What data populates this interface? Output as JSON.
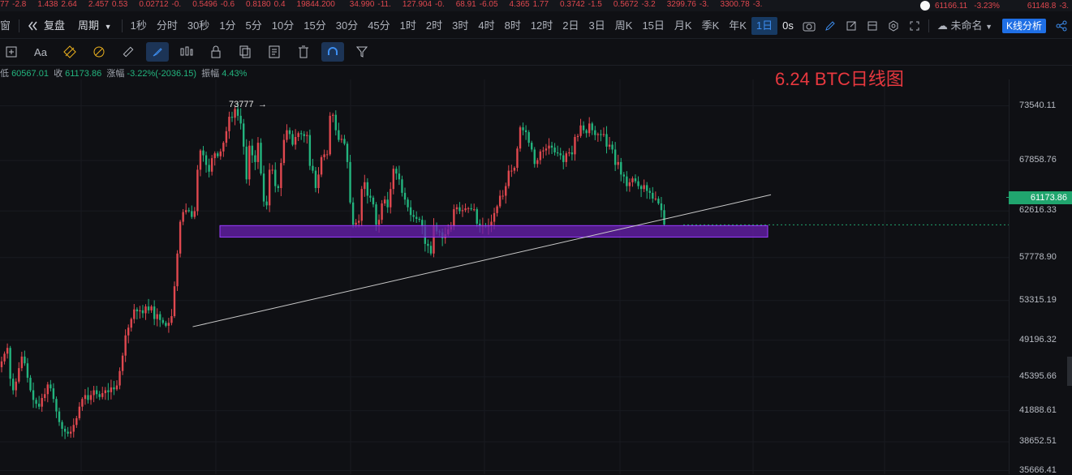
{
  "ticker": [
    {
      "value": "77",
      "change": "-2.8"
    },
    {
      "value": "1.438",
      "change": "2.64"
    },
    {
      "value": "2.457",
      "change": "0.53"
    },
    {
      "value": "0.02712",
      "change": "-0."
    },
    {
      "value": "0.5496",
      "change": "-0.6"
    },
    {
      "value": "0.8180",
      "change": "0.4"
    },
    {
      "value": "19844.200",
      "change": ""
    },
    {
      "value": "34.990",
      "change": "-11."
    },
    {
      "value": "127.904",
      "change": "-0."
    },
    {
      "value": "68.91",
      "change": "-6.05"
    },
    {
      "value": "4.365",
      "change": "1.77"
    },
    {
      "value": "0.3742",
      "change": "-1.5"
    },
    {
      "value": "0.5672",
      "change": "-3.2"
    },
    {
      "value": "3299.76",
      "change": "-3."
    },
    {
      "value": "3300.78",
      "change": "-3."
    }
  ],
  "ticker_right": {
    "price": "61166.11",
    "pct": "-3.23%",
    "last": "61148.8",
    "last_change": "-3."
  },
  "toolbar": {
    "window_label": "窗",
    "restore_label": "复盘",
    "period_label": "周期",
    "intervals": [
      "1秒",
      "分时",
      "30秒",
      "1分",
      "5分",
      "10分",
      "15分",
      "30分",
      "45分",
      "1时",
      "2时",
      "3时",
      "4时",
      "8时",
      "12时",
      "2日",
      "3日",
      "周K",
      "15日",
      "月K",
      "季K",
      "年K",
      "1日"
    ],
    "selected_interval": "1日",
    "countdown": "0s",
    "layout_name": "未命名",
    "kline_analysis": "K线分析"
  },
  "drawing_tools": [
    "add-tool",
    "text-tool",
    "fib-tool",
    "pattern-tool",
    "ruler-tool",
    "brush-tool",
    "candle-tool",
    "lock-tool",
    "copy-tool",
    "note-tool",
    "delete-tool",
    "magnet-tool",
    "filter-tool"
  ],
  "drawing_text_label": "Aa",
  "info": {
    "low_label": "低",
    "low": "60567.01",
    "close_label": "收",
    "close": "61173.86",
    "change_label": "涨幅",
    "change": "-3.22%(-2036.15)",
    "amp_label": "振幅",
    "amp": "4.43%"
  },
  "chart_title": "6.24 BTC日线图",
  "colors": {
    "up": "#e0484f",
    "down": "#23b47e",
    "band": "#6a1fb0",
    "band_border": "#9b3cff",
    "trend": "#c9c9c9",
    "current": "#20a56e"
  },
  "chart_data": {
    "type": "candlestick",
    "title": "6.24 BTC日线图",
    "y_ticks": [
      73540.11,
      67858.76,
      62616.33,
      57778.9,
      53315.19,
      49196.32,
      45395.66,
      41888.61,
      38652.51,
      35666.41
    ],
    "y_tick_labels": [
      "73540.11",
      "67858.76",
      "62616.33",
      "57778.90",
      "53315.19",
      "49196.32",
      "45395.66",
      "41888.61",
      "38652.51",
      "35666.41"
    ],
    "current_price": 61173.86,
    "current_price_label": "61173.86",
    "high_annotation": "73777",
    "support_zone": {
      "low": 59900,
      "high": 61100
    },
    "trendline": [
      {
        "i": 59,
        "price": 50600
      },
      {
        "i": 237,
        "price": 64300
      }
    ],
    "closes": [
      47000,
      47800,
      48400,
      45200,
      44000,
      44900,
      46300,
      47500,
      46800,
      45300,
      44000,
      43000,
      42600,
      42300,
      43200,
      43600,
      44600,
      44200,
      43100,
      41800,
      40700,
      40000,
      39700,
      39500,
      39700,
      40400,
      41100,
      42300,
      43100,
      43500,
      43000,
      43500,
      44000,
      43600,
      43300,
      43700,
      44000,
      43800,
      44300,
      44100,
      44500,
      46000,
      47600,
      49700,
      50500,
      51400,
      52400,
      52200,
      52300,
      52000,
      52700,
      52300,
      52700,
      51400,
      51900,
      51300,
      51000,
      50700,
      51000,
      51700,
      54800,
      58200,
      61500,
      62500,
      62700,
      62600,
      62000,
      62600,
      66900,
      68900,
      68400,
      67400,
      66700,
      68100,
      68600,
      68300,
      68800,
      69700,
      70900,
      72400,
      72300,
      73200,
      72500,
      71700,
      69300,
      65900,
      69400,
      68400,
      67700,
      69700,
      66500,
      63600,
      63200,
      66900,
      66900,
      65200,
      65000,
      67600,
      70000,
      71000,
      70600,
      69500,
      70300,
      70700,
      70600,
      70400,
      70500,
      67300,
      66800,
      65000,
      66400,
      68200,
      68500,
      68500,
      72500,
      72600,
      71000,
      70000,
      70100,
      69600,
      67700,
      63500,
      61200,
      61400,
      61600,
      64900,
      65600,
      64200,
      64000,
      63300,
      61200,
      61700,
      63400,
      63800,
      63000,
      64900,
      67000,
      66500,
      65900,
      64500,
      63800,
      63000,
      62200,
      62000,
      61800,
      61700,
      61000,
      59200,
      59000,
      58200,
      61100,
      60500,
      60400,
      59800,
      60200,
      60700,
      61000,
      62800,
      63000,
      62600,
      62700,
      62900,
      62900,
      62800,
      62800,
      61300,
      61000,
      61100,
      61000,
      61100,
      61500,
      62400,
      63100,
      64200,
      64200,
      65200,
      66800,
      66800,
      67100,
      69100,
      71300,
      71000,
      70800,
      69700,
      69000,
      67500,
      67900,
      68800,
      68900,
      69100,
      69400,
      69200,
      68700,
      68600,
      68400,
      67700,
      68600,
      68700,
      68500,
      70300,
      70400,
      71500,
      71000,
      70700,
      71700,
      71000,
      70500,
      70600,
      70500,
      70600,
      69300,
      69500,
      69000,
      67400,
      67700,
      66400,
      66200,
      65200,
      65600,
      66000,
      65700,
      65200,
      64900,
      65300,
      64700,
      64500,
      63900,
      63900,
      63400,
      62700,
      61200
    ]
  }
}
